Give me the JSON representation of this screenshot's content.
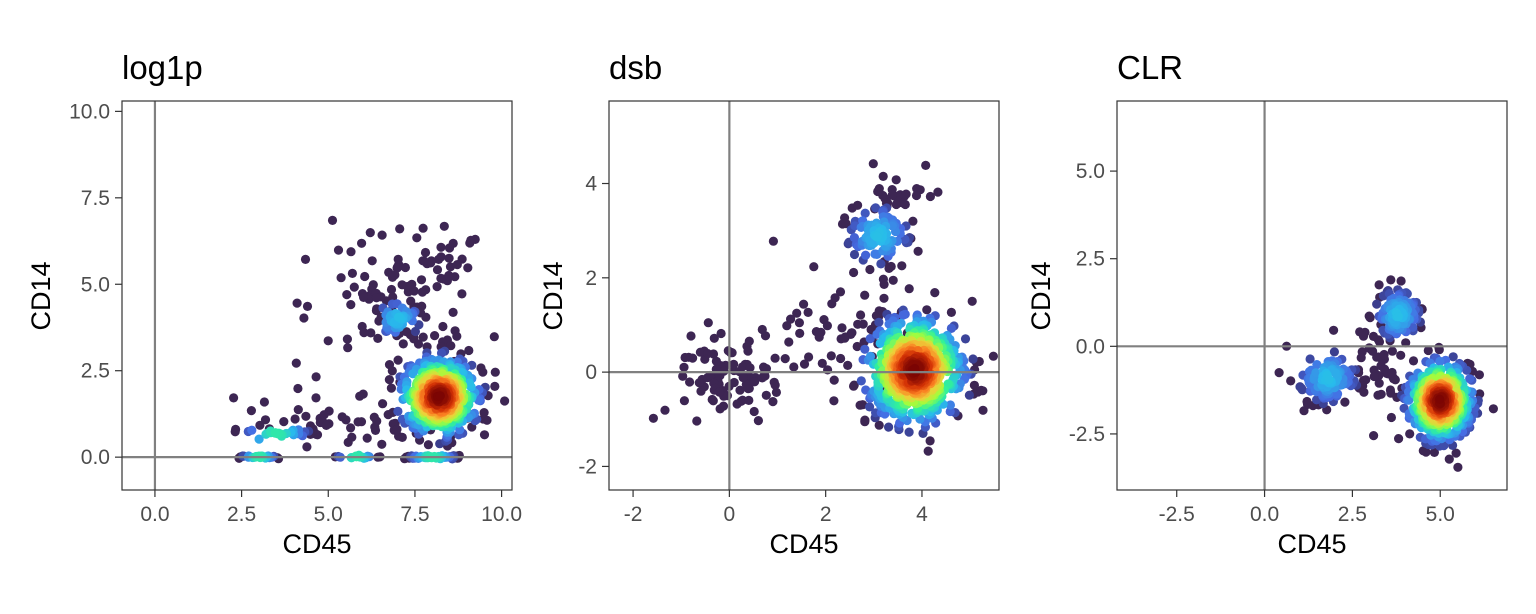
{
  "chart_data": [
    {
      "type": "scatter",
      "title": "log1p",
      "xlabel": "CD45",
      "ylabel": "CD14",
      "xlim": [
        -0.95,
        10.3
      ],
      "ylim": [
        -0.95,
        10.3
      ],
      "xticks": [
        0.0,
        2.5,
        5.0,
        7.5,
        10.0
      ],
      "xtick_labels": [
        "0.0",
        "2.5",
        "5.0",
        "7.5",
        "10.0"
      ],
      "yticks": [
        0.0,
        2.5,
        5.0,
        7.5,
        10.0
      ],
      "ytick_labels": [
        "0.0",
        "2.5",
        "5.0",
        "7.5",
        "10.0"
      ],
      "reference_lines": {
        "x": 0,
        "y": 0
      },
      "color_scale": "density (turbo: dark purple low, blue, green, yellow, orange, dark red high)",
      "grid": false,
      "legend": "none",
      "clusters": [
        {
          "center": [
            8.2,
            1.75
          ],
          "spread": [
            0.55,
            0.55
          ],
          "n": 520,
          "density": "high"
        },
        {
          "center": [
            7.0,
            4.0
          ],
          "spread": [
            0.35,
            0.3
          ],
          "n": 50,
          "density": "medium"
        },
        {
          "center": [
            8.3,
            5.7
          ],
          "spread": [
            0.5,
            0.5
          ],
          "n": 25,
          "density": "low"
        },
        {
          "center": [
            6.8,
            4.5
          ],
          "spread": [
            1.2,
            0.9
          ],
          "n": 90,
          "density": "low"
        },
        {
          "center": [
            8.3,
            1.2
          ],
          "spread": [
            0.8,
            0.05
          ],
          "n": 70,
          "density": "band"
        },
        {
          "center": [
            5.5,
            1.0
          ],
          "spread": [
            1.8,
            0.4
          ],
          "n": 60,
          "density": "low"
        },
        {
          "center": [
            3.5,
            0.7
          ],
          "spread": [
            1.2,
            0.05
          ],
          "n": 30,
          "density": "band"
        },
        {
          "center": [
            8.0,
            0.0
          ],
          "spread": [
            0.8,
            0.02
          ],
          "n": 80,
          "density": "band"
        },
        {
          "center": [
            3.0,
            0.0
          ],
          "spread": [
            0.6,
            0.02
          ],
          "n": 30,
          "density": "band"
        },
        {
          "center": [
            5.8,
            0.0
          ],
          "spread": [
            0.7,
            0.02
          ],
          "n": 20,
          "density": "band"
        }
      ]
    },
    {
      "type": "scatter",
      "title": "dsb",
      "xlabel": "CD45",
      "ylabel": "CD14",
      "xlim": [
        -2.5,
        5.6
      ],
      "ylim": [
        -2.5,
        5.75
      ],
      "xticks": [
        -2,
        0,
        2,
        4
      ],
      "xtick_labels": [
        "-2",
        "0",
        "2",
        "4"
      ],
      "yticks": [
        -2,
        0,
        2,
        4
      ],
      "ytick_labels": [
        "-2",
        "0",
        "2",
        "4"
      ],
      "reference_lines": {
        "x": 0,
        "y": 0
      },
      "color_scale": "density (turbo: dark purple low, blue, green, yellow, orange, dark red high)",
      "grid": false,
      "legend": "none",
      "clusters": [
        {
          "center": [
            3.85,
            0.05
          ],
          "spread": [
            0.5,
            0.55
          ],
          "n": 650,
          "density": "high"
        },
        {
          "center": [
            3.1,
            2.9
          ],
          "spread": [
            0.35,
            0.35
          ],
          "n": 110,
          "density": "medium"
        },
        {
          "center": [
            3.5,
            3.8
          ],
          "spread": [
            0.3,
            0.25
          ],
          "n": 20,
          "density": "low"
        },
        {
          "center": [
            0.0,
            -0.1
          ],
          "spread": [
            0.55,
            0.5
          ],
          "n": 90,
          "density": "low"
        },
        {
          "center": [
            2.5,
            0.9
          ],
          "spread": [
            0.9,
            0.6
          ],
          "n": 70,
          "density": "low"
        }
      ]
    },
    {
      "type": "scatter",
      "title": "CLR",
      "xlabel": "CD45",
      "ylabel": "CD14",
      "xlim": [
        -4.2,
        6.9
      ],
      "ylim": [
        -4.1,
        7.0
      ],
      "xticks": [
        -2.5,
        0.0,
        2.5,
        5.0
      ],
      "xtick_labels": [
        "-2.5",
        "0.0",
        "2.5",
        "5.0"
      ],
      "yticks": [
        -2.5,
        0.0,
        2.5,
        5.0
      ],
      "ytick_labels": [
        "-2.5",
        "0.0",
        "2.5",
        "5.0"
      ],
      "reference_lines": {
        "x": 0,
        "y": 0
      },
      "color_scale": "density (turbo: dark purple low, blue, green, yellow, orange, dark red high)",
      "grid": false,
      "legend": "none",
      "clusters": [
        {
          "center": [
            5.0,
            -1.55
          ],
          "spread": [
            0.45,
            0.55
          ],
          "n": 520,
          "density": "high"
        },
        {
          "center": [
            3.8,
            0.9
          ],
          "spread": [
            0.35,
            0.4
          ],
          "n": 110,
          "density": "medium"
        },
        {
          "center": [
            1.8,
            -0.9
          ],
          "spread": [
            0.45,
            0.4
          ],
          "n": 110,
          "density": "medium"
        },
        {
          "center": [
            3.3,
            -0.5
          ],
          "spread": [
            0.35,
            0.6
          ],
          "n": 40,
          "density": "low"
        }
      ]
    }
  ]
}
